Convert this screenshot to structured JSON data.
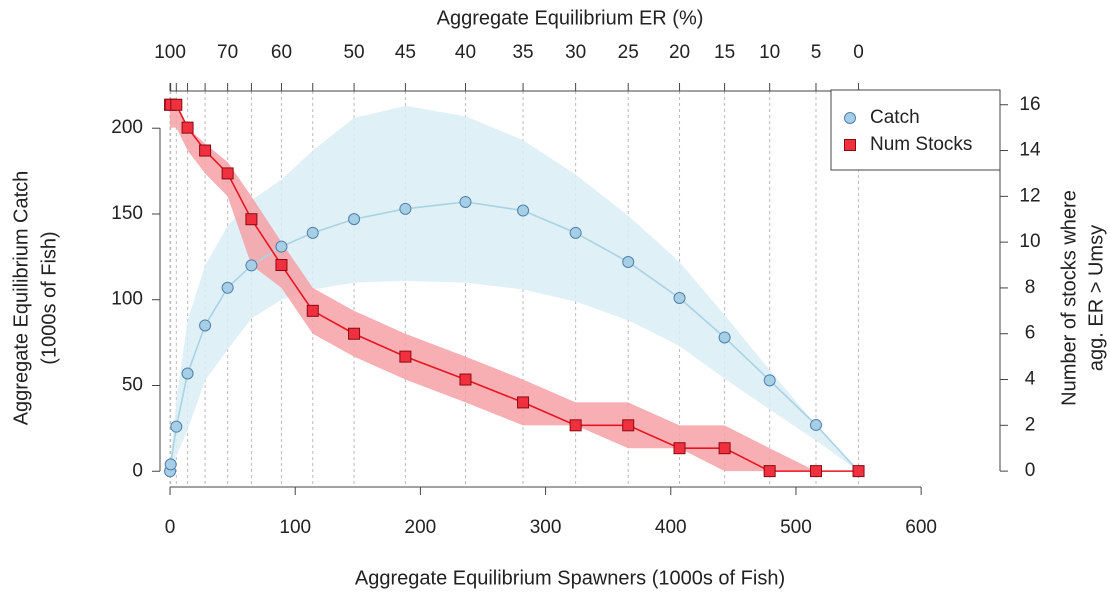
{
  "chart_data": {
    "type": "line",
    "x_label": "Aggregate Equilibrium Spawners (1000s of Fish)",
    "x2_label": "Aggregate Equilibrium ER (%)",
    "y_label": [
      "Aggregate Equilibrium Catch",
      "(1000s of Fish)"
    ],
    "y2_label": [
      "Number of stocks where",
      "agg. ER > Umsy"
    ],
    "x": [
      0,
      0.5,
      5,
      14,
      28,
      46,
      65,
      89,
      114,
      147,
      188,
      236,
      282,
      324,
      366,
      407,
      443,
      479,
      516,
      550
    ],
    "xlim": [
      -25.6,
      663
    ],
    "xticks": [
      0,
      100,
      200,
      300,
      400,
      500,
      600
    ],
    "x2ticks": [
      {
        "value": 0,
        "label": "100"
      },
      {
        "value": 0.5,
        "label": null
      },
      {
        "value": 5,
        "label": null
      },
      {
        "value": 14,
        "label": null
      },
      {
        "value": 28,
        "label": null
      },
      {
        "value": 46,
        "label": "70"
      },
      {
        "value": 65,
        "label": null
      },
      {
        "value": 89,
        "label": "60"
      },
      {
        "value": 114,
        "label": null
      },
      {
        "value": 147,
        "label": "50"
      },
      {
        "value": 188,
        "label": "45"
      },
      {
        "value": 236,
        "label": "40"
      },
      {
        "value": 282,
        "label": "35"
      },
      {
        "value": 324,
        "label": "30"
      },
      {
        "value": 366,
        "label": "25"
      },
      {
        "value": 407,
        "label": "20"
      },
      {
        "value": 443,
        "label": "15"
      },
      {
        "value": 479,
        "label": "10"
      },
      {
        "value": 516,
        "label": "5"
      },
      {
        "value": 550,
        "label": "0"
      }
    ],
    "ylim": [
      -8.6,
      221.7
    ],
    "yticks": [
      0,
      50,
      100,
      150,
      200
    ],
    "y2lim": [
      -0.65,
      16.6
    ],
    "y2ticks": [
      0,
      2,
      4,
      6,
      8,
      10,
      12,
      14,
      16
    ],
    "grid": "x2",
    "legend": "top-right",
    "series": [
      {
        "name": "Catch",
        "color": "#a9d3e5",
        "marker": "circle",
        "marker_fill": "#a6cfe6",
        "marker_stroke": "#4f7fae",
        "band_color": "#d9edf5",
        "values": [
          0,
          4,
          26,
          57,
          85,
          107,
          120,
          131,
          139,
          147,
          153,
          157,
          152,
          139,
          122,
          101,
          78,
          53,
          27,
          0
        ],
        "band_lower": [
          0,
          0,
          9,
          24,
          53,
          71,
          89,
          100,
          106,
          110,
          111,
          110,
          106,
          99,
          88,
          73,
          54,
          36,
          18,
          0
        ],
        "band_upper": [
          0,
          8,
          41,
          88,
          120,
          143,
          158,
          170,
          187,
          206,
          213,
          207,
          193,
          173,
          149,
          122,
          91,
          59,
          27,
          0
        ]
      },
      {
        "name": "Num Stocks",
        "axis": "y2",
        "color": "#e8141f",
        "marker": "square",
        "marker_fill": "#f0303f",
        "marker_stroke": "#8a0a12",
        "band_color": "#f6a1a6",
        "values": [
          16,
          16,
          16,
          15,
          14,
          13,
          11,
          9,
          7,
          6,
          5,
          4,
          3,
          2,
          2,
          1,
          1,
          0,
          0,
          0
        ],
        "band_lower": [
          15,
          15,
          15,
          14,
          13,
          12,
          9,
          8,
          6,
          5,
          4,
          3,
          2,
          2,
          1,
          1,
          0,
          0,
          0,
          0
        ],
        "band_upper": [
          16,
          16,
          16,
          15,
          14.3,
          13.5,
          12,
          10,
          8,
          7,
          6,
          5,
          4,
          3,
          3,
          2,
          2,
          1,
          0,
          0
        ]
      }
    ]
  }
}
